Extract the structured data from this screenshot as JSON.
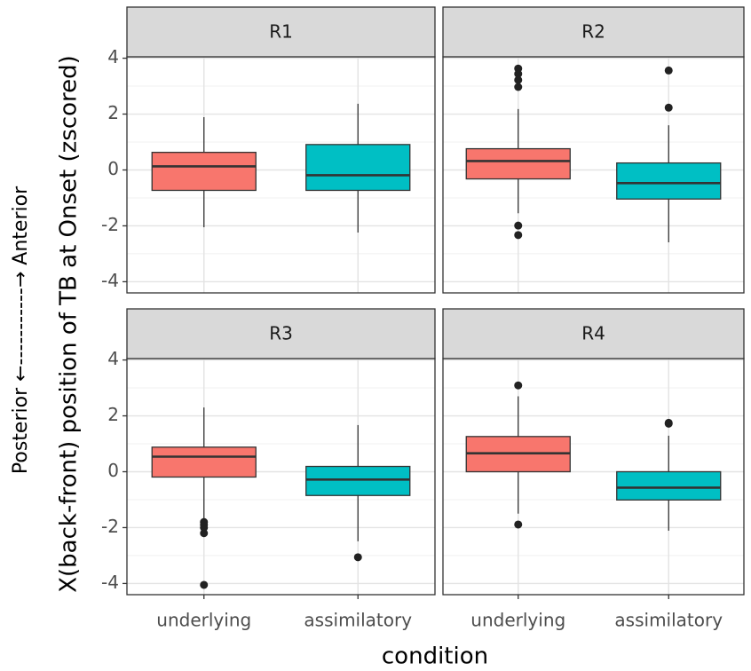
{
  "chart_data": {
    "type": "boxplot",
    "x_label": "condition",
    "y_label": "X(back-front) position of TB at Onset (zscored)",
    "side_label": "Posterior ←-----------→ Anterior",
    "categories": [
      "underlying",
      "assimilatory"
    ],
    "colors": [
      "#f8766d",
      "#00bfc4"
    ],
    "ylim": [
      -4.4,
      4.05
    ],
    "yticks": [
      -4,
      -2,
      0,
      2,
      4
    ],
    "minor_yticks": [
      -3,
      -1,
      1,
      3
    ],
    "grid": true,
    "facets": [
      {
        "title": "R1",
        "boxes": [
          {
            "low": -2.05,
            "q1": -0.73,
            "median": 0.13,
            "q3": 0.63,
            "high": 1.89,
            "outliers": []
          },
          {
            "low": -2.24,
            "q1": -0.73,
            "median": -0.19,
            "q3": 0.91,
            "high": 2.37,
            "outliers": []
          }
        ]
      },
      {
        "title": "R2",
        "boxes": [
          {
            "low": -1.55,
            "q1": -0.32,
            "median": 0.32,
            "q3": 0.76,
            "high": 2.18,
            "outliers": [
              3.63,
              3.44,
              3.22,
              2.97,
              -1.99,
              -2.33
            ]
          },
          {
            "low": -2.59,
            "q1": -1.04,
            "median": -0.47,
            "q3": 0.25,
            "high": 1.6,
            "outliers": [
              3.56,
              2.23
            ]
          }
        ]
      },
      {
        "title": "R3",
        "boxes": [
          {
            "low": -1.7,
            "q1": -0.19,
            "median": 0.54,
            "q3": 0.88,
            "high": 2.3,
            "outliers": [
              -1.8,
              -1.9,
              -2.0,
              -2.2,
              -4.05
            ]
          },
          {
            "low": -2.49,
            "q1": -0.85,
            "median": -0.28,
            "q3": 0.19,
            "high": 1.67,
            "outliers": [
              -3.06
            ]
          }
        ]
      },
      {
        "title": "R4",
        "boxes": [
          {
            "low": -1.5,
            "q1": 0,
            "median": 0.66,
            "q3": 1.26,
            "high": 2.7,
            "outliers": [
              3.09,
              -1.89
            ]
          },
          {
            "low": -2.11,
            "q1": -1.01,
            "median": -0.57,
            "q3": 0,
            "high": 1.29,
            "outliers": [
              1.75,
              1.72
            ]
          }
        ]
      }
    ]
  }
}
